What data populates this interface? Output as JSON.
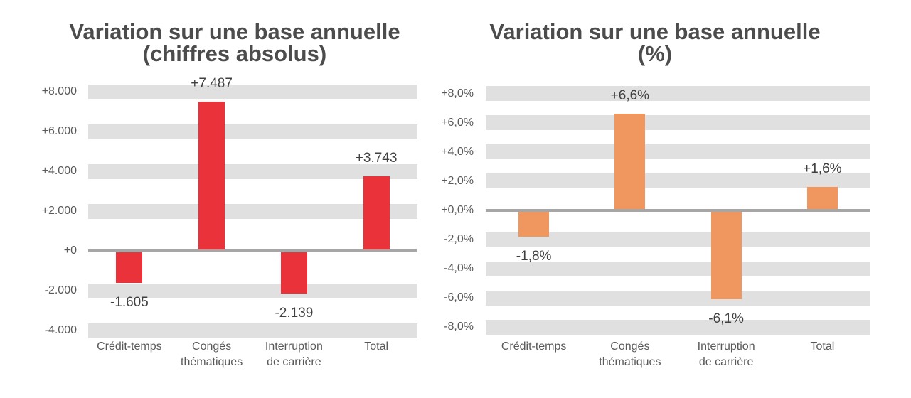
{
  "page": {
    "background_color": "#FFFFFF"
  },
  "chart_data": [
    {
      "type": "bar",
      "title": "Variation sur une base annuelle\n(chiffres absolus)",
      "categories": [
        "Crédit-temps",
        "Congés\nthématiques",
        "Interruption\nde carrière",
        "Total"
      ],
      "values": [
        -1605,
        7487,
        -2139,
        3743
      ],
      "data_labels": [
        "-1.605",
        "+7.487",
        "-2.139",
        "+3.743"
      ],
      "yticks": [
        {
          "value": 8000,
          "label": "+8.000"
        },
        {
          "value": 6000,
          "label": "+6.000"
        },
        {
          "value": 4000,
          "label": "+4.000"
        },
        {
          "value": 2000,
          "label": "+2.000"
        },
        {
          "value": 0,
          "label": "+0"
        },
        {
          "value": -2000,
          "label": "-2.000"
        },
        {
          "value": -4000,
          "label": "-4.000"
        }
      ],
      "ylim": [
        -4000,
        8000
      ],
      "grid": "horizontal-gray-bands",
      "legend": "none",
      "bar_color": "#E9323A",
      "grid_band_color": "#E0E0E0",
      "zero_line_color": "#A6A6A6"
    },
    {
      "type": "bar",
      "title": "Variation sur une base annuelle\n(%)",
      "categories": [
        "Crédit-temps",
        "Congés\nthématiques",
        "Interruption\nde carrière",
        "Total"
      ],
      "values": [
        -1.8,
        6.6,
        -6.1,
        1.6
      ],
      "data_labels": [
        "-1,8%",
        "+6,6%",
        "-6,1%",
        "+1,6%"
      ],
      "yticks": [
        {
          "value": 8,
          "label": "+8,0%"
        },
        {
          "value": 6,
          "label": "+6,0%"
        },
        {
          "value": 4,
          "label": "+4,0%"
        },
        {
          "value": 2,
          "label": "+2,0%"
        },
        {
          "value": 0,
          "label": "+0,0%"
        },
        {
          "value": -2,
          "label": "-2,0%"
        },
        {
          "value": -4,
          "label": "-4,0%"
        },
        {
          "value": -6,
          "label": "-6,0%"
        },
        {
          "value": -8,
          "label": "-8,0%"
        }
      ],
      "ylim": [
        -8,
        8
      ],
      "grid": "horizontal-gray-bands",
      "legend": "none",
      "bar_color": "#F0975F",
      "grid_band_color": "#E0E0E0",
      "zero_line_color": "#A6A6A6"
    }
  ]
}
